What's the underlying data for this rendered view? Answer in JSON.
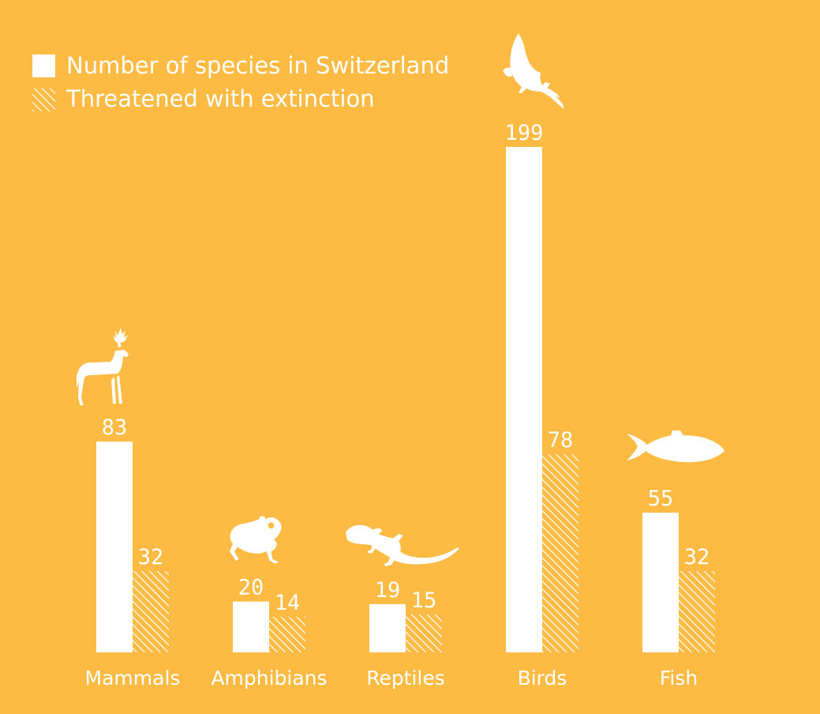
{
  "colors": {
    "background": "#FDBB43",
    "bar": "#ffffff",
    "hatch": "#ffffff"
  },
  "legend": [
    {
      "label": "Number of species in Switzerland",
      "style": "solid"
    },
    {
      "label": "Threatened with extinction",
      "style": "hatched"
    }
  ],
  "chart_data": {
    "type": "bar",
    "title": "",
    "xlabel": "",
    "ylabel": "",
    "grid": false,
    "legend_position": "top-left",
    "categories": [
      "Mammals",
      "Amphibians",
      "Reptiles",
      "Birds",
      "Fish"
    ],
    "icons": [
      "deer-icon",
      "frog-icon",
      "lizard-icon",
      "eagle-icon",
      "fish-icon"
    ],
    "series": [
      {
        "name": "Number of species in Switzerland",
        "values": [
          83,
          20,
          19,
          199,
          55
        ]
      },
      {
        "name": "Threatened with extinction",
        "values": [
          32,
          14,
          15,
          78,
          32
        ]
      }
    ],
    "ylim": [
      0,
      199
    ]
  }
}
